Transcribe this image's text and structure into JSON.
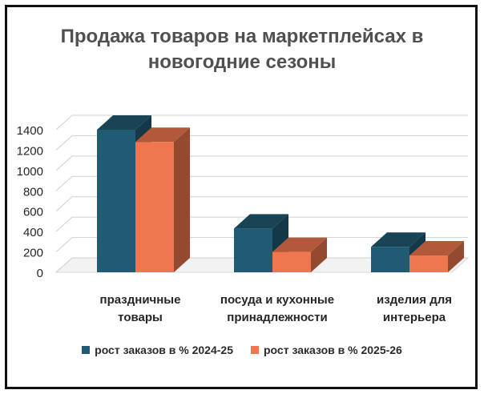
{
  "chart_data": {
    "type": "bar",
    "title_lines": [
      "Продажа товаров на маркетплейсах в",
      "новогодние сезоны"
    ],
    "categories": [
      [
        "праздничные",
        "товары"
      ],
      [
        "посуда и кухонные",
        "принадлежности"
      ],
      [
        "изделия для",
        "интерьера"
      ]
    ],
    "series": [
      {
        "name": "рост заказов в % 2024-25",
        "values": [
          1400,
          430,
          250
        ],
        "color": "#215a73"
      },
      {
        "name": "рост заказов в % 2025-26",
        "values": [
          1280,
          200,
          165
        ],
        "color": "#ee774f"
      }
    ],
    "yticks": [
      "0",
      "200",
      "400",
      "600",
      "800",
      "1000",
      "1200",
      "1400"
    ],
    "ylim": [
      0,
      1400
    ],
    "grid": true,
    "legend_position": "bottom",
    "three_d": true
  }
}
